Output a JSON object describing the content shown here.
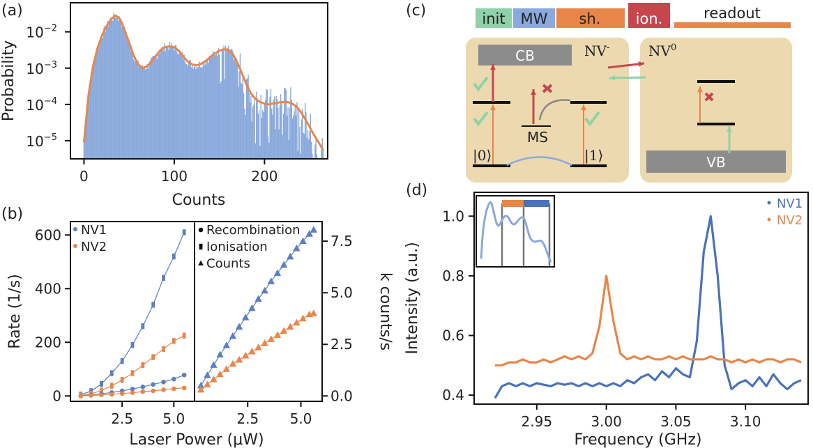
{
  "colors": {
    "blue": "#5b7fc2",
    "blue_dark": "#4a72b8",
    "orange": "#e8864a",
    "green": "#8fd1a8",
    "red": "#c9454e",
    "box": "#ecd9b0",
    "band": "#8c8c8c",
    "bar_blue": "#8aa9dc"
  },
  "panel_labels": {
    "a": "(a)",
    "b": "(b)",
    "c": "(c)",
    "d": "(d)"
  },
  "chart_data": [
    {
      "id": "a",
      "type": "bar",
      "title": "",
      "xlabel": "Counts",
      "ylabel": "Probability",
      "yscale": "log",
      "xlim": [
        -15,
        270
      ],
      "ylim_log10": [
        -5.5,
        -1.2
      ],
      "xticks": [
        0,
        100,
        200
      ],
      "xtick_labels": [
        "0",
        "100",
        "200"
      ],
      "yticks_log10": [
        -5,
        -4,
        -3,
        -2
      ],
      "ytick_labels": [
        "10",
        "10",
        "10",
        "10"
      ],
      "ytick_exponents": [
        "−5",
        "−4",
        "−3",
        "−2"
      ],
      "fit_curve": {
        "x": [
          0,
          5,
          10,
          15,
          20,
          25,
          30,
          35,
          40,
          45,
          50,
          55,
          60,
          65,
          70,
          75,
          80,
          85,
          90,
          95,
          100,
          105,
          110,
          115,
          120,
          125,
          130,
          135,
          140,
          145,
          150,
          155,
          160,
          165,
          170,
          175,
          180,
          185,
          190,
          195,
          200,
          205,
          210,
          215,
          220,
          225,
          230,
          235,
          240,
          245,
          250,
          255,
          260,
          265
        ],
        "log10_p": [
          -5.05,
          -3.75,
          -2.95,
          -2.45,
          -2.1,
          -1.85,
          -1.65,
          -1.55,
          -1.65,
          -1.95,
          -2.3,
          -2.65,
          -2.9,
          -3.0,
          -2.95,
          -2.82,
          -2.65,
          -2.5,
          -2.42,
          -2.4,
          -2.42,
          -2.52,
          -2.68,
          -2.82,
          -2.9,
          -2.92,
          -2.88,
          -2.8,
          -2.7,
          -2.6,
          -2.52,
          -2.48,
          -2.5,
          -2.62,
          -2.85,
          -3.15,
          -3.45,
          -3.7,
          -3.85,
          -3.93,
          -3.98,
          -4.0,
          -3.97,
          -3.95,
          -3.93,
          -3.93,
          -3.97,
          -4.05,
          -4.2,
          -4.4,
          -4.62,
          -4.85,
          -5.05,
          -5.25
        ]
      },
      "histogram_bin_width": 1
    },
    {
      "id": "b-left",
      "type": "scatter",
      "xlabel": "Laser Power (μW)",
      "ylabel": "Rate (1/s)",
      "xlim": [
        0,
        6
      ],
      "ylim": [
        -20,
        650
      ],
      "xticks": [
        2.5,
        5.0
      ],
      "xtick_labels": [
        "2.5",
        "5.0"
      ],
      "yticks": [
        0,
        200,
        400,
        600
      ],
      "ytick_labels": [
        "0",
        "200",
        "400",
        "600"
      ],
      "legend": [
        "NV1",
        "NV2"
      ],
      "legend_position": "top-left",
      "series": [
        {
          "name": "NV1 ionisation",
          "color": "blue",
          "marker": "square",
          "x": [
            0.5,
            1.0,
            1.5,
            2.0,
            2.5,
            3.0,
            3.5,
            4.0,
            4.5,
            5.0,
            5.5
          ],
          "y": [
            5,
            18,
            45,
            85,
            130,
            190,
            260,
            340,
            440,
            520,
            610
          ]
        },
        {
          "name": "NV2 ionisation",
          "color": "orange",
          "marker": "square",
          "x": [
            0.5,
            1.0,
            1.5,
            2.0,
            2.5,
            3.0,
            3.5,
            4.0,
            4.5,
            5.0,
            5.5
          ],
          "y": [
            2,
            8,
            20,
            38,
            60,
            85,
            115,
            145,
            175,
            205,
            225
          ]
        },
        {
          "name": "NV1 recombination",
          "color": "blue",
          "marker": "circle",
          "x": [
            0.5,
            1.0,
            1.5,
            2.0,
            2.5,
            3.0,
            3.5,
            4.0,
            4.5,
            5.0,
            5.5
          ],
          "y": [
            1,
            4,
            8,
            13,
            19,
            26,
            34,
            43,
            52,
            63,
            78
          ]
        },
        {
          "name": "NV2 recombination",
          "color": "orange",
          "marker": "circle",
          "x": [
            0.5,
            1.0,
            1.5,
            2.0,
            2.5,
            3.0,
            3.5,
            4.0,
            4.5,
            5.0,
            5.5
          ],
          "y": [
            0.5,
            2,
            4,
            6,
            9,
            12,
            16,
            19,
            23,
            27,
            30
          ]
        }
      ]
    },
    {
      "id": "b-right",
      "type": "scatter",
      "xlabel": "Laser Power (μW)",
      "ylabel": "k counts/s",
      "xlim": [
        0,
        6
      ],
      "ylim": [
        -0.26,
        8.45
      ],
      "xticks": [
        2.5,
        5.0
      ],
      "xtick_labels": [
        "2.5",
        "5.0"
      ],
      "yticks": [
        0.0,
        2.5,
        5.0,
        7.5
      ],
      "ytick_labels": [
        "0.0",
        "2.5",
        "5.0",
        "7.5"
      ],
      "legend": [
        "Recombination",
        "Ionisation",
        "Counts"
      ],
      "legend_position": "top-left",
      "series": [
        {
          "name": "NV1 counts",
          "color": "blue",
          "marker": "triangle",
          "x": [
            0.3,
            0.6,
            0.9,
            1.2,
            1.5,
            1.8,
            2.1,
            2.4,
            2.7,
            3.0,
            3.3,
            3.6,
            3.9,
            4.2,
            4.5,
            4.8,
            5.1,
            5.4,
            5.6
          ],
          "y": [
            0.5,
            1.0,
            1.5,
            2.0,
            2.45,
            2.9,
            3.35,
            3.8,
            4.25,
            4.7,
            5.1,
            5.55,
            5.95,
            6.35,
            6.75,
            7.15,
            7.5,
            7.85,
            8.05
          ]
        },
        {
          "name": "NV2 counts",
          "color": "orange",
          "marker": "triangle",
          "x": [
            0.3,
            0.6,
            0.9,
            1.2,
            1.5,
            1.8,
            2.1,
            2.4,
            2.7,
            3.0,
            3.3,
            3.6,
            3.9,
            4.2,
            4.5,
            4.8,
            5.1,
            5.4,
            5.6
          ],
          "y": [
            0.3,
            0.55,
            0.8,
            1.05,
            1.3,
            1.55,
            1.75,
            1.95,
            2.15,
            2.35,
            2.55,
            2.75,
            2.95,
            3.15,
            3.35,
            3.55,
            3.75,
            3.95,
            4.0
          ]
        }
      ]
    },
    {
      "id": "d",
      "type": "line",
      "xlabel": "Frequency (GHz)",
      "ylabel": "Intensity (a.u.)",
      "xlim": [
        2.905,
        3.145
      ],
      "ylim": [
        0.37,
        1.08
      ],
      "xticks": [
        2.95,
        3.0,
        3.05,
        3.1
      ],
      "xtick_labels": [
        "2.95",
        "3.00",
        "3.05",
        "3.10"
      ],
      "yticks": [
        0.4,
        0.6,
        0.8,
        1.0
      ],
      "ytick_labels": [
        "0.4",
        "0.6",
        "0.8",
        "1.0"
      ],
      "legend": [
        "NV1",
        "NV2"
      ],
      "legend_position": "top-right",
      "series": [
        {
          "name": "NV1",
          "color": "blue_dark",
          "x": [
            2.92,
            2.925,
            2.93,
            2.935,
            2.94,
            2.945,
            2.95,
            2.955,
            2.96,
            2.965,
            2.97,
            2.975,
            2.98,
            2.985,
            2.99,
            2.995,
            3.0,
            3.005,
            3.01,
            3.015,
            3.02,
            3.025,
            3.03,
            3.035,
            3.04,
            3.045,
            3.05,
            3.055,
            3.06,
            3.065,
            3.07,
            3.075,
            3.08,
            3.085,
            3.09,
            3.095,
            3.1,
            3.105,
            3.11,
            3.115,
            3.12,
            3.125,
            3.13,
            3.135,
            3.14
          ],
          "y": [
            0.39,
            0.43,
            0.44,
            0.43,
            0.44,
            0.43,
            0.44,
            0.435,
            0.43,
            0.44,
            0.435,
            0.44,
            0.43,
            0.44,
            0.43,
            0.44,
            0.43,
            0.44,
            0.43,
            0.45,
            0.44,
            0.46,
            0.47,
            0.45,
            0.48,
            0.46,
            0.49,
            0.47,
            0.46,
            0.58,
            0.88,
            1.0,
            0.8,
            0.5,
            0.42,
            0.44,
            0.45,
            0.43,
            0.46,
            0.43,
            0.47,
            0.44,
            0.42,
            0.44,
            0.45
          ]
        },
        {
          "name": "NV2",
          "color": "orange",
          "x": [
            2.92,
            2.925,
            2.93,
            2.935,
            2.94,
            2.945,
            2.95,
            2.955,
            2.96,
            2.965,
            2.97,
            2.975,
            2.98,
            2.985,
            2.99,
            2.995,
            3.0,
            3.005,
            3.01,
            3.015,
            3.02,
            3.025,
            3.03,
            3.035,
            3.04,
            3.045,
            3.05,
            3.055,
            3.06,
            3.065,
            3.07,
            3.075,
            3.08,
            3.085,
            3.09,
            3.095,
            3.1,
            3.105,
            3.11,
            3.115,
            3.12,
            3.125,
            3.13,
            3.135,
            3.14
          ],
          "y": [
            0.5,
            0.5,
            0.51,
            0.51,
            0.52,
            0.51,
            0.51,
            0.52,
            0.51,
            0.52,
            0.53,
            0.52,
            0.53,
            0.52,
            0.54,
            0.63,
            0.8,
            0.65,
            0.54,
            0.52,
            0.53,
            0.52,
            0.53,
            0.52,
            0.52,
            0.53,
            0.52,
            0.53,
            0.52,
            0.52,
            0.52,
            0.53,
            0.52,
            0.52,
            0.51,
            0.52,
            0.51,
            0.52,
            0.51,
            0.52,
            0.52,
            0.51,
            0.52,
            0.52,
            0.51
          ]
        }
      ]
    }
  ],
  "pulse_sequence": {
    "labels": [
      "init",
      "MW",
      "sh.",
      "ion.",
      "readout"
    ]
  },
  "energy_diagram": {
    "cb": "CB",
    "vb": "VB",
    "nv_minus": "NV",
    "nv_minus_sup": "-",
    "nv_zero": "NV",
    "nv_zero_sup": "0",
    "ms": "MS",
    "ket0": "|0⟩",
    "ket1": "|1⟩"
  }
}
